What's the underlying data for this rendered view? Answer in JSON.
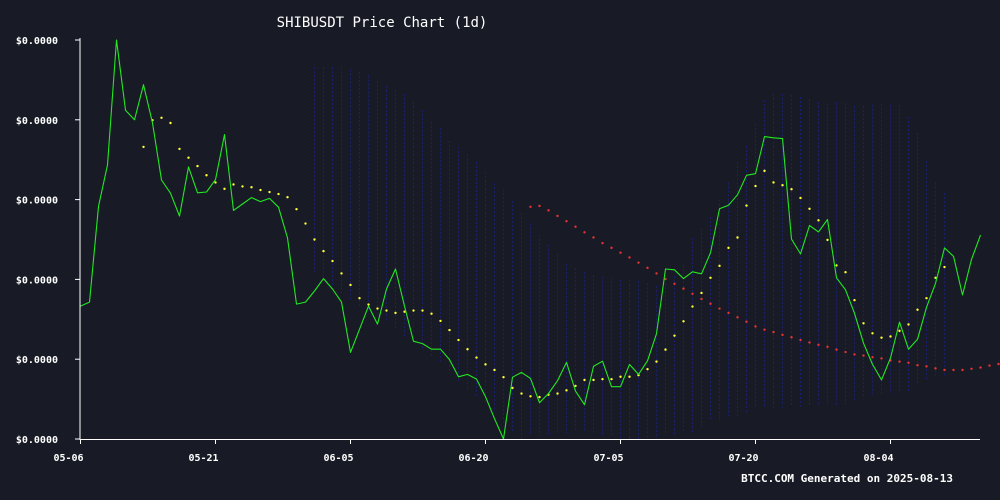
{
  "chart_data": {
    "type": "line",
    "title": "SHIBUSDT Price Chart (1d)",
    "footer": "BTCC.COM Generated on 2025-08-13",
    "x_ticks": [
      "05-06",
      "05-21",
      "06-05",
      "06-20",
      "07-05",
      "07-20",
      "08-04"
    ],
    "y_ticks": [
      "$0.0000",
      "$0.0000",
      "$0.0000",
      "$0.0000",
      "$0.0000",
      "$0.0000"
    ],
    "y_range_note": "relative price level 0-100 (axis labels rounded to $0.0000)",
    "ylim": [
      0,
      100
    ],
    "colors": {
      "background": "#181b25",
      "price": "#22e822",
      "ma_short": "#ffff33",
      "ma_long": "#e83333",
      "bollinger": "#1c1f6e",
      "axis": "#ffffff"
    },
    "series": [
      {
        "key": "price",
        "start_day": 0,
        "values": [
          33.3,
          34.3,
          58.3,
          68.7,
          100,
          82.4,
          80,
          88.8,
          79.2,
          64.9,
          61.6,
          55.9,
          68.2,
          61.7,
          61.9,
          65,
          76.3,
          57.3,
          58.9,
          60.5,
          59.5,
          60.3,
          58.1,
          50.4,
          33.8,
          34.3,
          37.1,
          40.2,
          37.6,
          34.3,
          21.7,
          27.5,
          33.3,
          28.8,
          37.6,
          42.6,
          33.3,
          24.5,
          23.9,
          22.5,
          22.5,
          19.9,
          15.6,
          16.2,
          15,
          10.6,
          5.1,
          0,
          15.5,
          16.7,
          15.2,
          9.1,
          11.4,
          14.6,
          19.2,
          12,
          8.6,
          18.2,
          19.5,
          13.1,
          13.1,
          18.7,
          16.2,
          19.6,
          26.4,
          42.6,
          42.4,
          40.2,
          41.9,
          41.4,
          46.7,
          57.7,
          58.6,
          61.2,
          66.1,
          66.5,
          75.8,
          75.5,
          75.3,
          50.1,
          46.4,
          53.5,
          51.9,
          55,
          40.4,
          37.4,
          31.5,
          24,
          18.7,
          14.8,
          20.3,
          29.3,
          22.5,
          25,
          33,
          39,
          47.9,
          45.8,
          36.1,
          45,
          51.1
        ]
      },
      {
        "key": "ma_short",
        "start_day": 7,
        "values": [
          73.2,
          79.9,
          80.5,
          79.2,
          72.7,
          70.5,
          68.4,
          66.1,
          64.3,
          62.7,
          63.8,
          63.3,
          63.1,
          62.4,
          61.9,
          61.4,
          60.6,
          57.6,
          54,
          50,
          47.1,
          44.6,
          41.5,
          38.6,
          35.3,
          33.7,
          32.7,
          32.2,
          31.6,
          31.9,
          32.2,
          32.2,
          31.4,
          29.6,
          27.3,
          24.8,
          22.5,
          20.4,
          18.7,
          17.3,
          15.5,
          12.8,
          11.4,
          10.7,
          10.5,
          11.1,
          11.4,
          12.2,
          13.3,
          14.8,
          14.8,
          15,
          15,
          15.6,
          15.6,
          16,
          17.5,
          19.4,
          22.4,
          25.9,
          29.5,
          33.2,
          36.6,
          40.4,
          43.4,
          47.9,
          50.5,
          58.5,
          63.4,
          67.2,
          64.3,
          63.6,
          62.6,
          60.4,
          57.7,
          54.8,
          49.9,
          43.5,
          41.8,
          34.8,
          29,
          26.5,
          25.4,
          25.7,
          27.1,
          28.7,
          32.4,
          35.3,
          40.4,
          43.1
        ]
      },
      {
        "key": "ma_long",
        "start_day": 50,
        "values": [
          58.2,
          58.4,
          57.3,
          55.9,
          54.6,
          53.2,
          51.8,
          50.5,
          49.1,
          47.9,
          46.7,
          45.5,
          44.2,
          42.9,
          41.5,
          40.1,
          38.9,
          37.7,
          36.4,
          35.1,
          33.9,
          32.7,
          31.6,
          30.5,
          29.4,
          28.2,
          27.4,
          26.8,
          26.1,
          25.5,
          24.8,
          24.2,
          23.6,
          23.1,
          22.4,
          21.8,
          21.2,
          20.9,
          20.5,
          20.2,
          19.7,
          19.4,
          19.1,
          18.5,
          18.2,
          17.7,
          17.3,
          17.3,
          17.3,
          17.6,
          17.9,
          18.4,
          18.8,
          19.4,
          20.5,
          21.8,
          23.4,
          25.1,
          26.8,
          28.9,
          30.8,
          32.6,
          33.8,
          35.2,
          36.4,
          37.6,
          38.8,
          39.9,
          41,
          41.9,
          42.8,
          43.2,
          43.3,
          43.4,
          43.6,
          44,
          44.6,
          44.8,
          44.8,
          45.4,
          45.6,
          45.9,
          46.1,
          46.6,
          46.9,
          47.1,
          47.5,
          47.3,
          47.3,
          47.2
        ]
      }
    ],
    "bollinger": {
      "start_day": 26,
      "upper": [
        93.2,
        93.2,
        93.2,
        93.1,
        92.6,
        92,
        91.1,
        89.8,
        88.5,
        87.4,
        86.4,
        84.5,
        82.4,
        79.5,
        78,
        74.7,
        73.2,
        71.3,
        69.4,
        66.9,
        64.1,
        62.6,
        59.7,
        56.6,
        54,
        51.2,
        48.7,
        46.2,
        43.9,
        42.8,
        41.8,
        41.1,
        40.7,
        40.5,
        39.8,
        39.8,
        39.7,
        39,
        38.4,
        39.1,
        40.8,
        43.5,
        50.4,
        52.7,
        55.6,
        60,
        64.3,
        69.4,
        73.4,
        79,
        84.9,
        86.5,
        86.4,
        86.2,
        85.7,
        85.2,
        84.4,
        84.1,
        84.3,
        84.2,
        83.4,
        83.5,
        83.8,
        83.9,
        83.8,
        83.6,
        80.7,
        76.7,
        69.6,
        64.3,
        61.6
      ],
      "lower": [
        41.8,
        39.8,
        38.3,
        36.5,
        34.7,
        33.1,
        31.8,
        30.7,
        29.1,
        27.2,
        25.5,
        24.2,
        22.4,
        20.7,
        19.2,
        17.1,
        14.2,
        12.1,
        10.3,
        8.8,
        6.8,
        4.1,
        2.1,
        0.2,
        0.9,
        0.8,
        1.1,
        1.2,
        1.5,
        2.3,
        2.2,
        1.7,
        0.9,
        0.6,
        0.3,
        0.1,
        0.1,
        0.1,
        0.2,
        0.9,
        1.2,
        2,
        1.7,
        2.9,
        4.5,
        4.6,
        5.3,
        5.8,
        6.5,
        7.7,
        7.9,
        7.7,
        7.9,
        8.2,
        8.2,
        8.1,
        8.4,
        8.6,
        8.6,
        8.6,
        9.3,
        10.2,
        10.7,
        11.2,
        11.4,
        11.6,
        12.1,
        13.4,
        14.7,
        15.3,
        15.8
      ]
    }
  }
}
